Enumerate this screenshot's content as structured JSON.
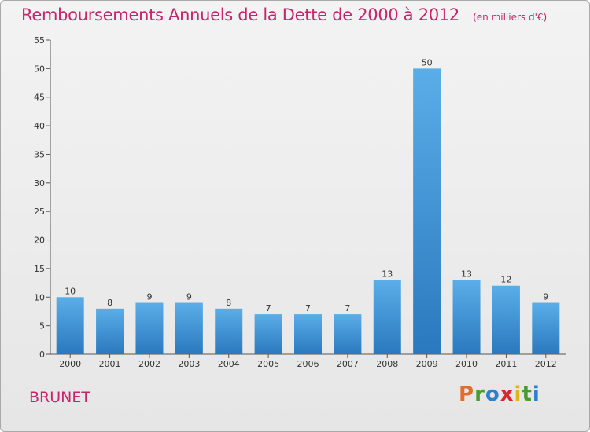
{
  "chart_data": {
    "type": "bar",
    "title": "Remboursements Annuels de la Dette de 2000 à 2012",
    "subtitle": "(en milliers d'€)",
    "categories": [
      "2000",
      "2001",
      "2002",
      "2003",
      "2004",
      "2005",
      "2006",
      "2007",
      "2008",
      "2009",
      "2010",
      "2011",
      "2012"
    ],
    "values": [
      10,
      8,
      9,
      9,
      8,
      7,
      7,
      7,
      13,
      50,
      13,
      12,
      9
    ],
    "value_labels": [
      "10",
      "8",
      "9",
      "9",
      "8",
      "7",
      "7",
      "7",
      "13",
      "50",
      "13",
      "12",
      "9"
    ],
    "ylim": [
      0,
      55
    ],
    "yticks": [
      "0",
      "5",
      "10",
      "15",
      "20",
      "25",
      "30",
      "35",
      "40",
      "45",
      "50",
      "55"
    ],
    "xlabel": "",
    "ylabel": "",
    "grid": false,
    "legend": "none",
    "bar_color_top": "#5aaee8",
    "bar_color_bottom": "#2a78be"
  },
  "commune": "BRUNET",
  "logo": {
    "text": "Proxiti",
    "letters": [
      "P",
      "r",
      "o",
      "x",
      "i",
      "t",
      "i"
    ]
  },
  "colors": {
    "title": "#c8246b",
    "axis": "#555555"
  }
}
